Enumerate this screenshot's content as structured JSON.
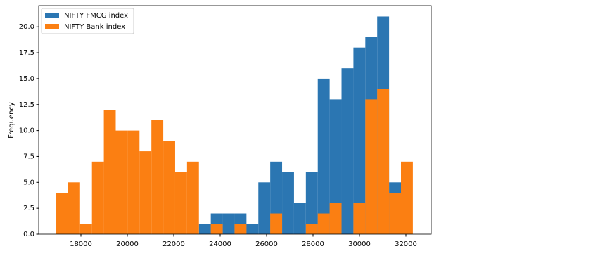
{
  "chart_data": {
    "type": "histogram",
    "ylabel": "Frequency",
    "bins": [
      16940,
      17452,
      17964,
      18476,
      18988,
      19500,
      20012,
      20524,
      21036,
      21548,
      22060,
      22572,
      23084,
      23596,
      24108,
      24620,
      25132,
      25644,
      26156,
      26668,
      27180,
      27692,
      28204,
      28716,
      29228,
      29740,
      30252,
      30764,
      31276,
      31788,
      32300
    ],
    "series": [
      {
        "name": "NIFTY FMCG index",
        "color": "#2b76b2",
        "values": [
          0,
          0,
          0,
          0,
          0,
          0,
          0,
          0,
          0,
          0,
          0,
          0,
          1,
          2,
          2,
          2,
          1,
          5,
          7,
          6,
          3,
          6,
          15,
          13,
          16,
          18,
          19,
          21,
          5,
          0
        ]
      },
      {
        "name": "NIFTY Bank index",
        "color": "#fb7f12",
        "values": [
          4,
          5,
          1,
          7,
          12,
          10,
          10,
          8,
          11,
          9,
          6,
          7,
          0,
          1,
          0,
          1,
          0,
          0,
          2,
          0,
          0,
          1,
          2,
          3,
          0,
          3,
          13,
          14,
          4,
          7
        ]
      }
    ],
    "xlim": [
      16182,
      33091
    ],
    "ylim": [
      0,
      22.05
    ],
    "xticks": [
      18000,
      20000,
      22000,
      24000,
      26000,
      28000,
      30000,
      32000
    ],
    "yticks": [
      {
        "value": 0,
        "label": "0.0"
      },
      {
        "value": 2.5,
        "label": "2.5"
      },
      {
        "value": 5,
        "label": "5.0"
      },
      {
        "value": 7.5,
        "label": "7.5"
      },
      {
        "value": 10,
        "label": "10.0"
      },
      {
        "value": 12.5,
        "label": "12.5"
      },
      {
        "value": 15,
        "label": "15.0"
      },
      {
        "value": 17.5,
        "label": "17.5"
      },
      {
        "value": 20,
        "label": "20.0"
      }
    ],
    "legend": "upper left"
  }
}
